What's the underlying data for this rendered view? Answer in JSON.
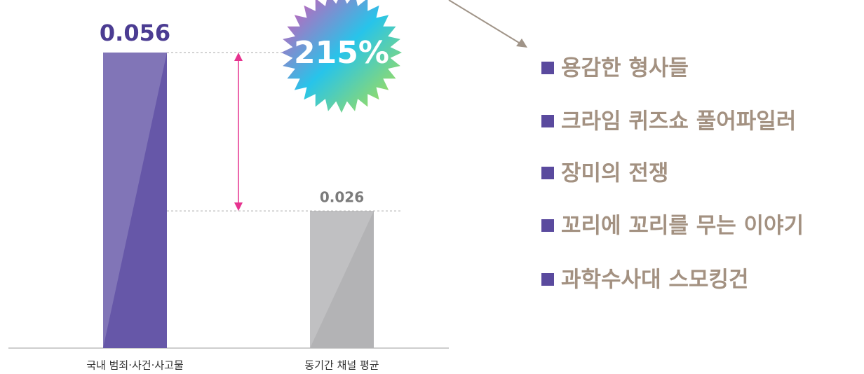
{
  "chart_data": {
    "type": "bar",
    "categories": [
      "국내 범죄·사건·사고물",
      "동기간 채널 평균"
    ],
    "values": [
      0.056,
      0.026
    ],
    "colors": [
      "#6657a8",
      "#b3b3b5"
    ],
    "label_colors": [
      "#4b3c92",
      "#7b7b7b"
    ],
    "annotation": "215%"
  },
  "titles": [
    "용감한 형사들",
    "크라임 퀴즈쇼 풀어파일러",
    "장미의 전쟁",
    "꼬리에 꼬리를 무는 이야기",
    "과학수사대 스모킹건"
  ]
}
